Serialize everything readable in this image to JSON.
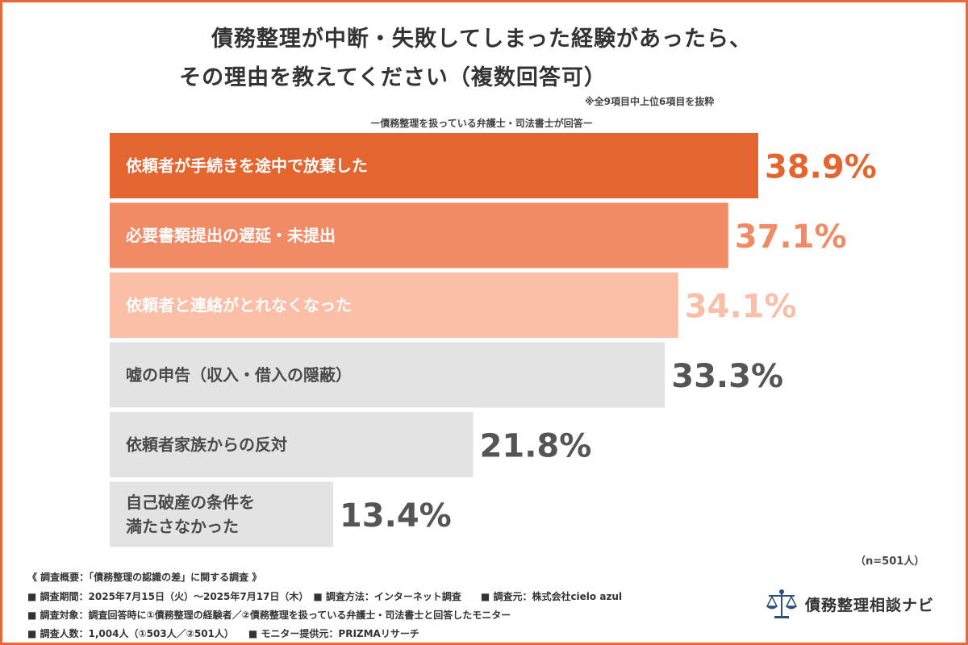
{
  "title_line1": "債務整理が中断・失敗してしまった経験があったら、",
  "title_line2": "その理由を教えてください（複数回答可）",
  "note": "※全9項目中上位6項目を抜粋",
  "subtitle": "ー債務整理を扱っている弁護士・司法書士が回答ー",
  "sample_size": "（n=501人）",
  "footer": {
    "line0": "《 調査概要：「債務整理の認識の差」に関する調査 》",
    "line1": "■ 調査期間：2025年7月15日（火）～2025年7月17日（木）　■ 調査方法：インターネット調査　　■ 調査元：株式会社cielo azul",
    "line2": "■ 調査対象：調査回答時に①債務整理の経験者／②債務整理を扱っている弁護士・司法書士と回答したモニター",
    "line3": "■ 調査人数：1,004人（①503人／②501人）　　■ モニター提供元：PRIZMAリサーチ"
  },
  "logo_text": "債務整理相談ナビ",
  "colors": {
    "border": "#e8693a"
  },
  "chart_data": {
    "type": "bar",
    "orientation": "horizontal",
    "categories": [
      [
        "依頼者が手続きを途中で放棄した"
      ],
      [
        "必要書類提出の遅延・未提出"
      ],
      [
        "依頼者と連絡がとれなくなった"
      ],
      [
        "嘘の申告（収入・借入の隠蔽）"
      ],
      [
        "依頼者家族からの反対"
      ],
      [
        "自己破産の条件を",
        "満たさなかった"
      ]
    ],
    "values": [
      38.9,
      37.1,
      34.1,
      33.3,
      21.8,
      13.4
    ],
    "value_labels": [
      "38.9%",
      "37.1%",
      "34.1%",
      "33.3%",
      "21.8%",
      "13.4%"
    ],
    "bar_colors": [
      "#e4652f",
      "#f08b65",
      "#fbbfa8",
      "#e3e3e3",
      "#e3e3e3",
      "#e3e3e3"
    ],
    "label_colors": [
      "#ffffff",
      "#ffffff",
      "#ffffff",
      "#4a4a4a",
      "#4a4a4a",
      "#4a4a4a"
    ],
    "value_colors": [
      "#e4652f",
      "#f08b65",
      "#fbbfa8",
      "#555555",
      "#555555",
      "#555555"
    ],
    "legend": "none",
    "grid": false
  }
}
